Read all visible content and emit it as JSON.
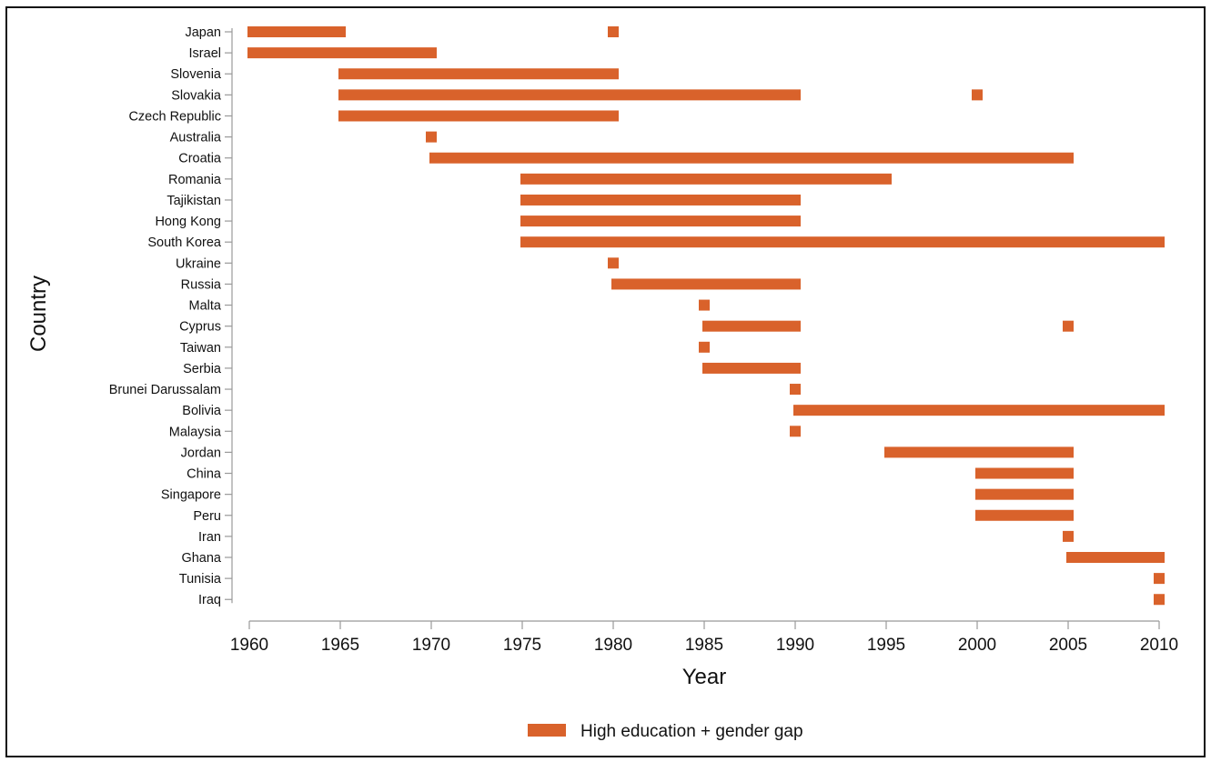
{
  "chart_data": {
    "type": "bar",
    "subtype": "horizontal-range",
    "title": "",
    "xlabel": "Year",
    "ylabel": "Country",
    "xlim": [
      1960,
      2010
    ],
    "xticks": [
      1960,
      1965,
      1970,
      1975,
      1980,
      1985,
      1990,
      1995,
      2000,
      2005,
      2010
    ],
    "grid": false,
    "legend_position": "bottom",
    "series": [
      {
        "name": "High education + gender gap",
        "color": "#d9622b",
        "rows": [
          {
            "country": "Japan",
            "segments": [
              [
                1960,
                1965
              ],
              [
                1980,
                1980
              ]
            ]
          },
          {
            "country": "Israel",
            "segments": [
              [
                1960,
                1970
              ]
            ]
          },
          {
            "country": "Slovenia",
            "segments": [
              [
                1965,
                1980
              ]
            ]
          },
          {
            "country": "Slovakia",
            "segments": [
              [
                1965,
                1990
              ],
              [
                2000,
                2000
              ]
            ]
          },
          {
            "country": "Czech Republic",
            "segments": [
              [
                1965,
                1980
              ]
            ]
          },
          {
            "country": "Australia",
            "segments": [
              [
                1970,
                1970
              ]
            ]
          },
          {
            "country": "Croatia",
            "segments": [
              [
                1970,
                2005
              ]
            ]
          },
          {
            "country": "Romania",
            "segments": [
              [
                1975,
                1995
              ]
            ]
          },
          {
            "country": "Tajikistan",
            "segments": [
              [
                1975,
                1990
              ]
            ]
          },
          {
            "country": "Hong Kong",
            "segments": [
              [
                1975,
                1990
              ]
            ]
          },
          {
            "country": "South Korea",
            "segments": [
              [
                1975,
                2010
              ]
            ]
          },
          {
            "country": "Ukraine",
            "segments": [
              [
                1980,
                1980
              ]
            ]
          },
          {
            "country": "Russia",
            "segments": [
              [
                1980,
                1990
              ]
            ]
          },
          {
            "country": "Malta",
            "segments": [
              [
                1985,
                1985
              ]
            ]
          },
          {
            "country": "Cyprus",
            "segments": [
              [
                1985,
                1990
              ],
              [
                2005,
                2005
              ]
            ]
          },
          {
            "country": "Taiwan",
            "segments": [
              [
                1985,
                1985
              ]
            ]
          },
          {
            "country": "Serbia",
            "segments": [
              [
                1985,
                1990
              ]
            ]
          },
          {
            "country": "Brunei Darussalam",
            "segments": [
              [
                1990,
                1990
              ]
            ]
          },
          {
            "country": "Bolivia",
            "segments": [
              [
                1990,
                2010
              ]
            ]
          },
          {
            "country": "Malaysia",
            "segments": [
              [
                1990,
                1990
              ]
            ]
          },
          {
            "country": "Jordan",
            "segments": [
              [
                1995,
                2005
              ]
            ]
          },
          {
            "country": "China",
            "segments": [
              [
                2000,
                2005
              ]
            ]
          },
          {
            "country": "Singapore",
            "segments": [
              [
                2000,
                2005
              ]
            ]
          },
          {
            "country": "Peru",
            "segments": [
              [
                2000,
                2005
              ]
            ]
          },
          {
            "country": "Iran",
            "segments": [
              [
                2005,
                2005
              ]
            ]
          },
          {
            "country": "Ghana",
            "segments": [
              [
                2005,
                2010
              ]
            ]
          },
          {
            "country": "Tunisia",
            "segments": [
              [
                2010,
                2010
              ]
            ]
          },
          {
            "country": "Iraq",
            "segments": [
              [
                2010,
                2010
              ]
            ]
          }
        ]
      }
    ]
  }
}
